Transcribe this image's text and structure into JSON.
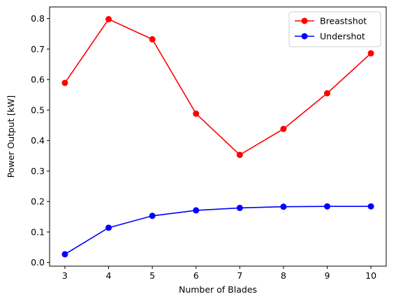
{
  "chart_data": {
    "type": "line",
    "title": "",
    "xlabel": "Number of Blades",
    "ylabel": "Power Output [kW]",
    "x": [
      3,
      4,
      5,
      6,
      7,
      8,
      9,
      10
    ],
    "xlim": [
      2.65,
      10.35
    ],
    "ylim": [
      -0.012,
      0.838
    ],
    "xticks": [
      3,
      4,
      5,
      6,
      7,
      8,
      9,
      10
    ],
    "yticks": [
      0.0,
      0.1,
      0.2,
      0.3,
      0.4,
      0.5,
      0.6,
      0.7,
      0.8
    ],
    "grid": false,
    "legend_position": "top-right",
    "series": [
      {
        "name": "Breastshot",
        "color": "#ff0000",
        "marker": "circle",
        "values": [
          0.589,
          0.798,
          0.732,
          0.488,
          0.353,
          0.438,
          0.555,
          0.686
        ]
      },
      {
        "name": "Undershot",
        "color": "#0000ff",
        "marker": "circle",
        "values": [
          0.027,
          0.114,
          0.153,
          0.171,
          0.179,
          0.183,
          0.184,
          0.184
        ]
      }
    ]
  }
}
